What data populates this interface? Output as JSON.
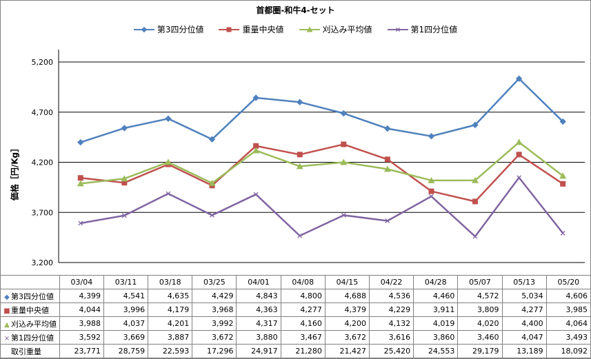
{
  "chart_data": {
    "type": "line",
    "title": "首都圏-和牛4-セット",
    "ylabel": "価格［円/Kg］",
    "xlabel": "",
    "ylim": [
      3200,
      5200
    ],
    "yticks": [
      "3,200",
      "3,700",
      "4,200",
      "4,700",
      "5,200"
    ],
    "categories": [
      "03/04",
      "03/11",
      "03/18",
      "03/25",
      "04/01",
      "04/08",
      "04/15",
      "04/22",
      "04/28",
      "05/07",
      "05/13",
      "05/20"
    ],
    "grid": true,
    "legend_position": "top",
    "series": [
      {
        "name": "第3四分位値",
        "color": "#4F81BD",
        "marker": "diamond",
        "values": [
          4399,
          4541,
          4635,
          4429,
          4843,
          4800,
          4688,
          4536,
          4460,
          4572,
          5034,
          4606
        ],
        "labels": [
          "4,399",
          "4,541",
          "4,635",
          "4,429",
          "4,843",
          "4,800",
          "4,688",
          "4,536",
          "4,460",
          "4,572",
          "5,034",
          "4,606"
        ]
      },
      {
        "name": "重量中央値",
        "color": "#C0504D",
        "marker": "square",
        "values": [
          4044,
          3996,
          4179,
          3968,
          4363,
          4277,
          4379,
          4229,
          3911,
          3809,
          4277,
          3985
        ],
        "labels": [
          "4,044",
          "3,996",
          "4,179",
          "3,968",
          "4,363",
          "4,277",
          "4,379",
          "4,229",
          "3,911",
          "3,809",
          "4,277",
          "3,985"
        ]
      },
      {
        "name": "刈込み平均値",
        "color": "#9BBB59",
        "marker": "triangle",
        "values": [
          3988,
          4037,
          4201,
          3992,
          4317,
          4160,
          4200,
          4132,
          4019,
          4020,
          4400,
          4064
        ],
        "labels": [
          "3,988",
          "4,037",
          "4,201",
          "3,992",
          "4,317",
          "4,160",
          "4,200",
          "4,132",
          "4,019",
          "4,020",
          "4,400",
          "4,064"
        ]
      },
      {
        "name": "第1四分位値",
        "color": "#8064A2",
        "marker": "x",
        "values": [
          3592,
          3669,
          3887,
          3672,
          3880,
          3467,
          3672,
          3616,
          3860,
          3460,
          4047,
          3493
        ],
        "labels": [
          "3,592",
          "3,669",
          "3,887",
          "3,672",
          "3,880",
          "3,467",
          "3,672",
          "3,616",
          "3,860",
          "3,460",
          "4,047",
          "3,493"
        ]
      }
    ],
    "extra_row": {
      "name": "取引重量",
      "labels": [
        "23,771",
        "28,759",
        "22,593",
        "17,296",
        "24,917",
        "21,280",
        "21,427",
        "25,420",
        "24,553",
        "29,179",
        "13,189",
        "18,092"
      ]
    }
  }
}
